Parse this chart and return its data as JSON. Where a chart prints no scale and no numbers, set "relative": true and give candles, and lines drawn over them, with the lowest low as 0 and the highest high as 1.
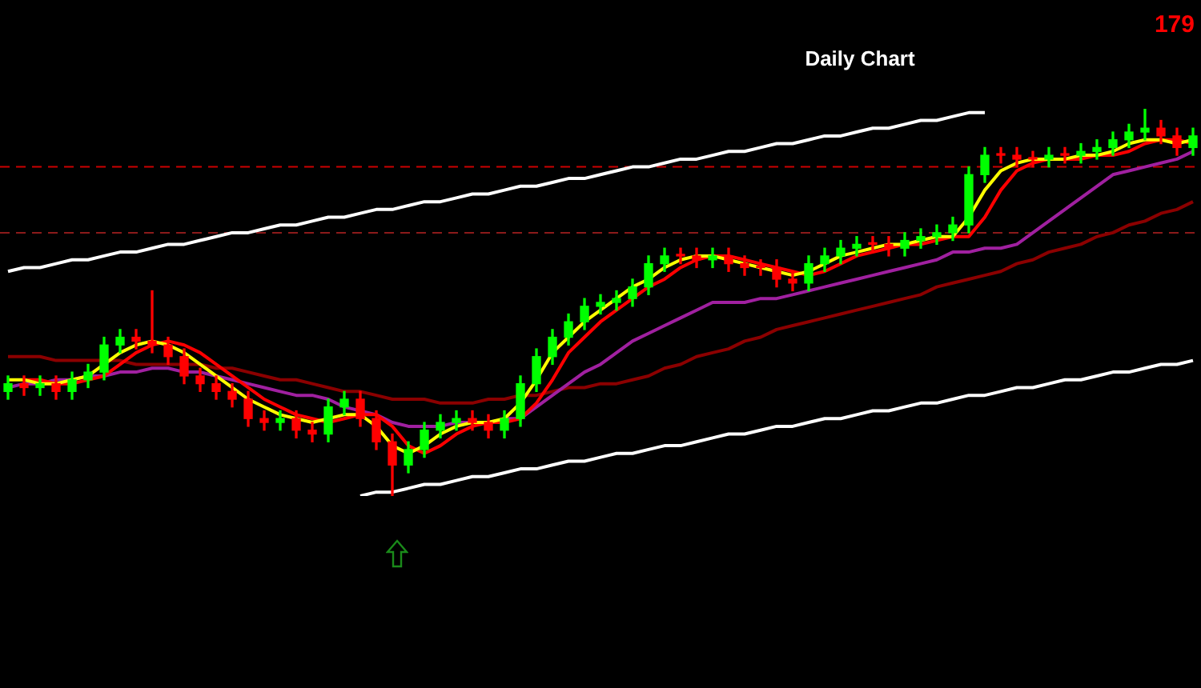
{
  "chart_data": {
    "type": "candlestick",
    "title": "Daily Chart",
    "annotations": [
      "179"
    ],
    "relative": true,
    "tick_labels": false,
    "categories": [
      null,
      null,
      null,
      null,
      null,
      null,
      null,
      null,
      null,
      null,
      null,
      null,
      null,
      null,
      null,
      null,
      null,
      null,
      null,
      null,
      null,
      null,
      null,
      null,
      null,
      null,
      null,
      null,
      null,
      null,
      null,
      null,
      null,
      null,
      null,
      null,
      null,
      null,
      null,
      null,
      null,
      null,
      null,
      null,
      null,
      null,
      null,
      null,
      null,
      null,
      null,
      null,
      null,
      null,
      null,
      null,
      null,
      null,
      null,
      null,
      null,
      null,
      null,
      null,
      null,
      null,
      null,
      null,
      null,
      null,
      null,
      null,
      null,
      null,
      null
    ],
    "ohlc": [
      [
        0.27,
        0.31,
        0.25,
        0.29
      ],
      [
        0.29,
        0.31,
        0.26,
        0.28
      ],
      [
        0.28,
        0.31,
        0.26,
        0.29
      ],
      [
        0.29,
        0.31,
        0.25,
        0.27
      ],
      [
        0.27,
        0.32,
        0.25,
        0.3
      ],
      [
        0.3,
        0.34,
        0.28,
        0.32
      ],
      [
        0.32,
        0.41,
        0.3,
        0.39
      ],
      [
        0.39,
        0.43,
        0.37,
        0.41
      ],
      [
        0.41,
        0.43,
        0.38,
        0.4
      ],
      [
        0.4,
        0.53,
        0.37,
        0.39
      ],
      [
        0.39,
        0.41,
        0.34,
        0.36
      ],
      [
        0.36,
        0.38,
        0.29,
        0.31
      ],
      [
        0.31,
        0.33,
        0.27,
        0.29
      ],
      [
        0.29,
        0.31,
        0.25,
        0.27
      ],
      [
        0.27,
        0.29,
        0.23,
        0.25
      ],
      [
        0.25,
        0.27,
        0.18,
        0.2
      ],
      [
        0.2,
        0.22,
        0.17,
        0.19
      ],
      [
        0.19,
        0.22,
        0.17,
        0.2
      ],
      [
        0.2,
        0.22,
        0.15,
        0.17
      ],
      [
        0.17,
        0.19,
        0.14,
        0.16
      ],
      [
        0.16,
        0.25,
        0.14,
        0.23
      ],
      [
        0.23,
        0.27,
        0.21,
        0.25
      ],
      [
        0.25,
        0.27,
        0.18,
        0.2
      ],
      [
        0.2,
        0.22,
        0.12,
        0.14
      ],
      [
        0.14,
        0.16,
        0,
        0.08
      ],
      [
        0.08,
        0.14,
        0.06,
        0.12
      ],
      [
        0.12,
        0.19,
        0.1,
        0.17
      ],
      [
        0.17,
        0.21,
        0.15,
        0.19
      ],
      [
        0.19,
        0.22,
        0.17,
        0.2
      ],
      [
        0.2,
        0.22,
        0.17,
        0.19
      ],
      [
        0.19,
        0.21,
        0.15,
        0.17
      ],
      [
        0.17,
        0.22,
        0.15,
        0.2
      ],
      [
        0.2,
        0.31,
        0.18,
        0.29
      ],
      [
        0.29,
        0.38,
        0.27,
        0.36
      ],
      [
        0.36,
        0.43,
        0.34,
        0.41
      ],
      [
        0.41,
        0.47,
        0.39,
        0.45
      ],
      [
        0.45,
        0.51,
        0.43,
        0.49
      ],
      [
        0.49,
        0.52,
        0.47,
        0.5
      ],
      [
        0.5,
        0.53,
        0.48,
        0.51
      ],
      [
        0.51,
        0.56,
        0.49,
        0.54
      ],
      [
        0.54,
        0.62,
        0.52,
        0.6
      ],
      [
        0.6,
        0.64,
        0.58,
        0.62
      ],
      [
        0.62,
        0.64,
        0.6,
        0.62
      ],
      [
        0.62,
        0.64,
        0.59,
        0.61
      ],
      [
        0.61,
        0.64,
        0.59,
        0.62
      ],
      [
        0.62,
        0.64,
        0.58,
        0.6
      ],
      [
        0.6,
        0.62,
        0.57,
        0.59
      ],
      [
        0.59,
        0.61,
        0.57,
        0.59
      ],
      [
        0.59,
        0.61,
        0.54,
        0.56
      ],
      [
        0.56,
        0.58,
        0.53,
        0.55
      ],
      [
        0.55,
        0.62,
        0.53,
        0.6
      ],
      [
        0.6,
        0.64,
        0.58,
        0.62
      ],
      [
        0.62,
        0.66,
        0.6,
        0.64
      ],
      [
        0.64,
        0.67,
        0.62,
        0.65
      ],
      [
        0.65,
        0.67,
        0.63,
        0.65
      ],
      [
        0.65,
        0.67,
        0.62,
        0.64
      ],
      [
        0.64,
        0.68,
        0.62,
        0.66
      ],
      [
        0.66,
        0.69,
        0.64,
        0.67
      ],
      [
        0.67,
        0.7,
        0.65,
        0.68
      ],
      [
        0.68,
        0.72,
        0.66,
        0.7
      ],
      [
        0.7,
        0.85,
        0.68,
        0.83
      ],
      [
        0.83,
        0.9,
        0.81,
        0.88
      ],
      [
        0.88,
        0.9,
        0.86,
        0.88
      ],
      [
        0.88,
        0.9,
        0.85,
        0.87
      ],
      [
        0.87,
        0.89,
        0.85,
        0.87
      ],
      [
        0.87,
        0.9,
        0.85,
        0.88
      ],
      [
        0.88,
        0.9,
        0.86,
        0.88
      ],
      [
        0.88,
        0.91,
        0.86,
        0.89
      ],
      [
        0.89,
        0.92,
        0.87,
        0.9
      ],
      [
        0.9,
        0.94,
        0.88,
        0.92
      ],
      [
        0.92,
        0.96,
        0.9,
        0.94
      ],
      [
        0.94,
        1,
        0.92,
        0.95
      ],
      [
        0.95,
        0.97,
        0.91,
        0.93
      ],
      [
        0.93,
        0.95,
        0.88,
        0.9
      ],
      [
        0.9,
        0.95,
        0.88,
        0.93
      ]
    ],
    "colors": [
      "#00ff00",
      "#ff0000",
      "#00ff00",
      "#ff0000",
      "#00ff00",
      "#00ff00",
      "#00ff00",
      "#00ff00",
      "#ff0000",
      "#ff0000",
      "#ff0000",
      "#ff0000",
      "#ff0000",
      "#ff0000",
      "#ff0000",
      "#ff0000",
      "#ff0000",
      "#00ff00",
      "#ff0000",
      "#ff0000",
      "#00ff00",
      "#00ff00",
      "#ff0000",
      "#ff0000",
      "#ff0000",
      "#00ff00",
      "#00ff00",
      "#00ff00",
      "#00ff00",
      "#ff0000",
      "#ff0000",
      "#00ff00",
      "#00ff00",
      "#00ff00",
      "#00ff00",
      "#00ff00",
      "#00ff00",
      "#00ff00",
      "#00ff00",
      "#00ff00",
      "#00ff00",
      "#00ff00",
      "#ff0000",
      "#ff0000",
      "#00ff00",
      "#ff0000",
      "#ff0000",
      "#ff0000",
      "#ff0000",
      "#ff0000",
      "#00ff00",
      "#00ff00",
      "#00ff00",
      "#00ff00",
      "#ff0000",
      "#ff0000",
      "#00ff00",
      "#00ff00",
      "#00ff00",
      "#00ff00",
      "#00ff00",
      "#00ff00",
      "#ff0000",
      "#ff0000",
      "#ff0000",
      "#00ff00",
      "#ff0000",
      "#00ff00",
      "#00ff00",
      "#00ff00",
      "#00ff00",
      "#00ff00",
      "#ff0000",
      "#ff0000",
      "#00ff00"
    ],
    "series": [
      {
        "type": "line",
        "color": "#ffff00",
        "values": [
          0.3,
          0.3,
          0.29,
          0.29,
          0.3,
          0.31,
          0.34,
          0.37,
          0.39,
          0.4,
          0.39,
          0.37,
          0.34,
          0.31,
          0.28,
          0.25,
          0.23,
          0.21,
          0.2,
          0.19,
          0.2,
          0.21,
          0.21,
          0.18,
          0.13,
          0.11,
          0.13,
          0.16,
          0.18,
          0.19,
          0.19,
          0.2,
          0.24,
          0.3,
          0.37,
          0.41,
          0.45,
          0.48,
          0.51,
          0.54,
          0.56,
          0.59,
          0.61,
          0.62,
          0.62,
          0.61,
          0.6,
          0.59,
          0.58,
          0.57,
          0.58,
          0.6,
          0.62,
          0.63,
          0.64,
          0.65,
          0.65,
          0.66,
          0.67,
          0.67,
          0.72,
          0.79,
          0.84,
          0.86,
          0.87,
          0.87,
          0.87,
          0.88,
          0.88,
          0.89,
          0.91,
          0.92,
          0.92,
          0.91,
          0.92
        ]
      },
      {
        "type": "line",
        "color": "#ff0000",
        "values": [
          null,
          0.3,
          0.3,
          0.29,
          0.29,
          0.3,
          0.31,
          0.34,
          0.37,
          0.39,
          0.4,
          0.39,
          0.37,
          0.34,
          0.31,
          0.28,
          0.25,
          0.23,
          0.21,
          0.2,
          0.19,
          0.2,
          0.21,
          0.21,
          0.18,
          0.13,
          0.11,
          0.13,
          0.16,
          0.18,
          0.19,
          0.19,
          0.2,
          0.24,
          0.3,
          0.37,
          0.41,
          0.45,
          0.48,
          0.51,
          0.54,
          0.56,
          0.59,
          0.61,
          0.62,
          0.62,
          0.61,
          0.6,
          0.59,
          0.58,
          0.57,
          0.58,
          0.6,
          0.62,
          0.63,
          0.64,
          0.65,
          0.65,
          0.66,
          0.67,
          0.67,
          0.72,
          0.79,
          0.84,
          0.86,
          0.87,
          0.87,
          0.87,
          0.88,
          0.88,
          0.89,
          0.91,
          0.92,
          0.92,
          0.91
        ]
      },
      {
        "type": "line",
        "color": "#a020a0",
        "values": [
          0.28,
          0.29,
          0.29,
          0.3,
          0.3,
          0.31,
          0.31,
          0.32,
          0.32,
          0.33,
          0.33,
          0.32,
          0.32,
          0.31,
          0.3,
          0.29,
          0.28,
          0.27,
          0.26,
          0.26,
          0.25,
          0.23,
          0.22,
          0.21,
          0.19,
          0.18,
          0.18,
          0.18,
          0.19,
          0.19,
          null,
          0.2,
          0.2,
          0.23,
          0.26,
          0.29,
          0.32,
          0.34,
          0.37,
          0.4,
          0.42,
          0.44,
          0.46,
          0.48,
          0.5,
          0.5,
          0.5,
          0.51,
          0.51,
          0.52,
          0.53,
          0.54,
          0.55,
          0.56,
          0.57,
          0.58,
          0.59,
          0.6,
          0.61,
          0.63,
          0.63,
          0.64,
          0.64,
          0.65,
          0.68,
          0.71,
          0.74,
          0.77,
          0.8,
          0.83,
          0.84,
          0.85,
          0.86,
          0.87,
          0.89
        ]
      },
      {
        "type": "line",
        "color": "#8b0000",
        "values": [
          0.36,
          0.36,
          0.36,
          0.35,
          0.35,
          0.35,
          0.35,
          0.35,
          0.34,
          0.34,
          0.34,
          0.34,
          0.34,
          0.33,
          0.33,
          0.32,
          0.31,
          0.3,
          0.3,
          0.29,
          0.28,
          0.27,
          0.27,
          0.26,
          0.25,
          0.25,
          0.25,
          0.24,
          0.24,
          0.24,
          0.25,
          0.25,
          0.26,
          0.26,
          0.27,
          0.28,
          0.28,
          0.29,
          0.29,
          0.3,
          0.31,
          0.33,
          0.34,
          0.36,
          0.37,
          0.38,
          0.4,
          0.41,
          0.43,
          0.44,
          0.45,
          0.46,
          0.47,
          0.48,
          0.49,
          0.5,
          0.51,
          0.52,
          0.54,
          0.55,
          0.56,
          0.57,
          0.58,
          0.6,
          0.61,
          0.63,
          0.64,
          0.65,
          0.67,
          0.68,
          0.7,
          0.71,
          0.73,
          0.74,
          0.76
        ]
      },
      {
        "type": "line",
        "color": "#ffffff",
        "values": [
          0.58,
          0.59,
          0.59,
          0.6,
          0.61,
          0.61,
          0.62,
          0.63,
          0.63,
          0.64,
          0.65,
          0.65,
          0.66,
          0.67,
          0.68,
          0.68,
          0.69,
          0.7,
          0.7,
          0.71,
          0.72,
          0.72,
          0.73,
          0.74,
          0.74,
          0.75,
          0.76,
          0.76,
          0.77,
          0.78,
          0.78,
          0.79,
          0.8,
          0.8,
          0.81,
          0.82,
          0.82,
          0.83,
          0.84,
          0.85,
          0.85,
          0.86,
          0.87,
          0.87,
          0.88,
          0.89,
          0.89,
          0.9,
          0.91,
          0.91,
          0.92,
          0.93,
          0.93,
          0.94,
          0.95,
          0.95,
          0.96,
          0.97,
          0.97,
          0.98,
          0.99,
          0.99,
          null,
          null,
          null,
          null,
          null,
          null,
          null,
          null,
          null,
          null,
          null,
          null,
          null
        ]
      },
      {
        "type": "line",
        "color": "#ffffff",
        "values": [
          null,
          null,
          null,
          null,
          null,
          null,
          null,
          null,
          null,
          null,
          null,
          null,
          null,
          null,
          null,
          null,
          null,
          null,
          null,
          null,
          null,
          null,
          0.0,
          0.01,
          0.01,
          0.02,
          0.03,
          0.03,
          0.04,
          0.05,
          0.05,
          0.06,
          0.07,
          0.07,
          0.08,
          0.09,
          0.09,
          0.1,
          0.11,
          0.11,
          0.12,
          0.13,
          0.13,
          0.14,
          0.15,
          0.16,
          0.16,
          0.17,
          0.18,
          0.18,
          0.19,
          0.2,
          0.2,
          0.21,
          0.22,
          0.22,
          0.23,
          0.24,
          0.24,
          0.25,
          0.26,
          0.26,
          0.27,
          0.28,
          0.28,
          0.29,
          0.3,
          0.3,
          0.31,
          0.32,
          0.32,
          0.33,
          0.34,
          0.34,
          0.35
        ]
      }
    ],
    "ref_lines": [
      {
        "axis": "y",
        "value": 0.85,
        "color": "#cc0000",
        "line_style": "dashed"
      },
      {
        "axis": "y",
        "value": 0.68,
        "color": "#8b1a1a",
        "line_style": "dashed"
      }
    ]
  }
}
